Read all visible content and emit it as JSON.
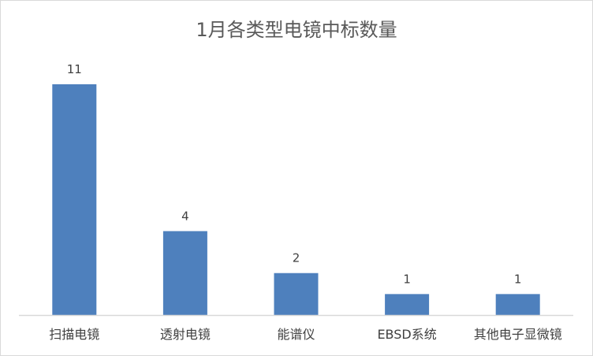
{
  "chart_data": {
    "type": "bar",
    "title": "1月各类型电镜中标数量",
    "categories": [
      "扫描电镜",
      "透射电镜",
      "能谱仪",
      "EBSD系统",
      "其他电子显微镜"
    ],
    "values": [
      11,
      4,
      2,
      1,
      1
    ],
    "data_labels": [
      "11",
      "4",
      "2",
      "1",
      "1"
    ],
    "xlabel": "",
    "ylabel": "",
    "ylim": [
      0,
      11
    ],
    "grid": false,
    "legend": "none",
    "bar_color": "#4e80bd"
  }
}
